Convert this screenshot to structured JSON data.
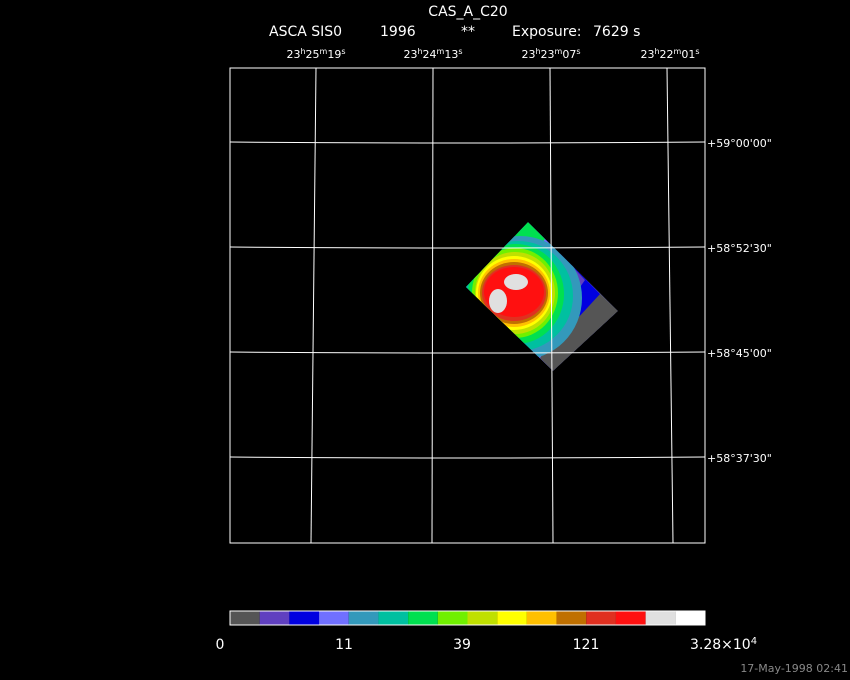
{
  "header": {
    "title": "CAS_A_C20",
    "instrument": "ASCA SIS0",
    "year": "1996",
    "flag": "**",
    "exposure_label": "Exposure:",
    "exposure_value": "7629 s"
  },
  "ra_units": [
    "h",
    "m",
    "s"
  ],
  "ra_labels": [
    [
      "23",
      "25",
      "19"
    ],
    [
      "23",
      "24",
      "13"
    ],
    [
      "23",
      "23",
      "07"
    ],
    [
      "23",
      "22",
      "01"
    ]
  ],
  "dec_labels": [
    "+59°00'00\"",
    "+58°52'30\"",
    "+58°45'00\"",
    "+58°37'30\""
  ],
  "colorbar": {
    "colors": [
      "#555555",
      "#6040c0",
      "#0000e0",
      "#7070ff",
      "#3399bb",
      "#00c0a0",
      "#00e050",
      "#70f000",
      "#c0e000",
      "#ffff00",
      "#ffc000",
      "#c07000",
      "#e03020",
      "#ff1010",
      "#e0e0e0",
      "#ffffff"
    ],
    "labels": [
      "0",
      "11",
      "39",
      "121"
    ],
    "max_label": {
      "mantissa": "3.28×10",
      "exponent": "4"
    }
  },
  "timestamp": "17-May-1998 02:41"
}
